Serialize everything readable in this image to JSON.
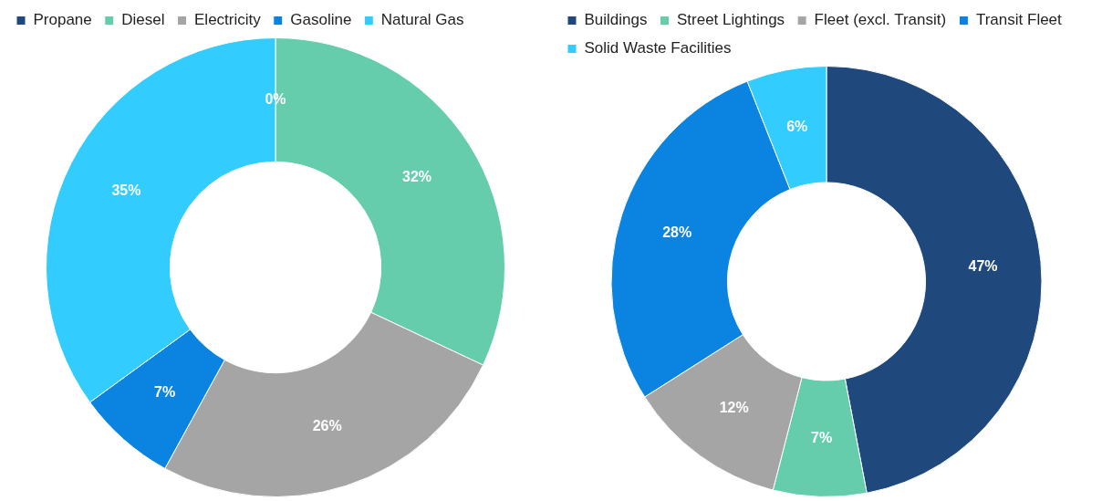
{
  "chart_data": [
    {
      "type": "donut",
      "categories": [
        "Propane",
        "Diesel",
        "Electricity",
        "Gasoline",
        "Natural Gas"
      ],
      "values": [
        0,
        32,
        26,
        7,
        35
      ],
      "colors": [
        "#1f497d",
        "#66cdac",
        "#a5a5a5",
        "#0a84e0",
        "#33ccff"
      ],
      "value_labels": [
        "0%",
        "32%",
        "26%",
        "7%",
        "35%"
      ],
      "legend": "top"
    },
    {
      "type": "donut",
      "categories": [
        "Buildings",
        "Street Lightings",
        "Fleet (excl. Transit)",
        "Transit Fleet",
        "Solid Waste Facilities"
      ],
      "values": [
        47,
        7,
        12,
        28,
        6
      ],
      "colors": [
        "#1f497d",
        "#66cdac",
        "#a5a5a5",
        "#0a84e0",
        "#33ccff"
      ],
      "value_labels": [
        "47%",
        "7%",
        "12%",
        "28%",
        "6%"
      ],
      "legend": "top"
    }
  ]
}
